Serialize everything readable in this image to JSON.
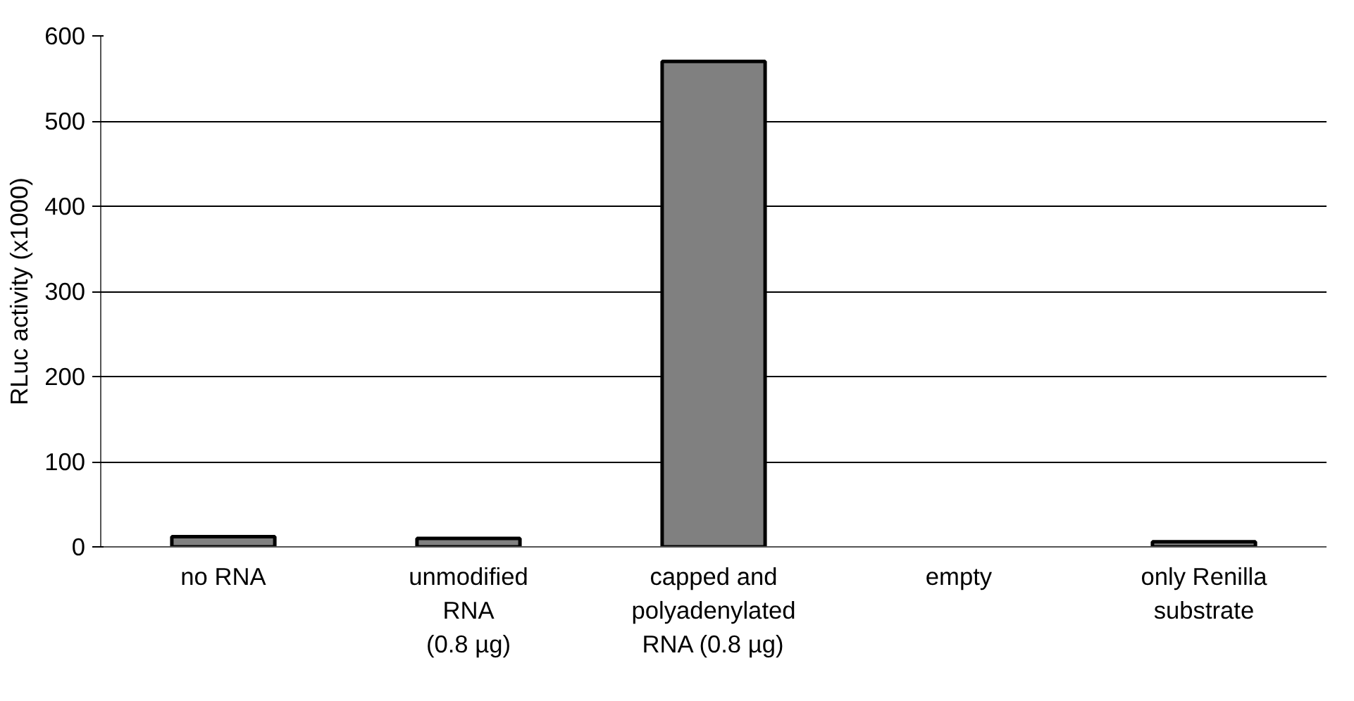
{
  "chart_data": {
    "type": "bar",
    "ylabel": "RLuc activity (x1000)",
    "categories": [
      "no RNA",
      "unmodified\nRNA\n(0.8 µg)",
      "capped and\npolyadenylated\nRNA (0.8 µg)",
      "empty",
      "only Renilla\nsubstrate"
    ],
    "values": [
      12,
      10,
      570,
      null,
      6
    ],
    "color": "#808080",
    "ylim": [
      0,
      600
    ],
    "yticks": [
      0,
      100,
      200,
      300,
      400,
      500,
      600
    ],
    "grid": "y"
  }
}
